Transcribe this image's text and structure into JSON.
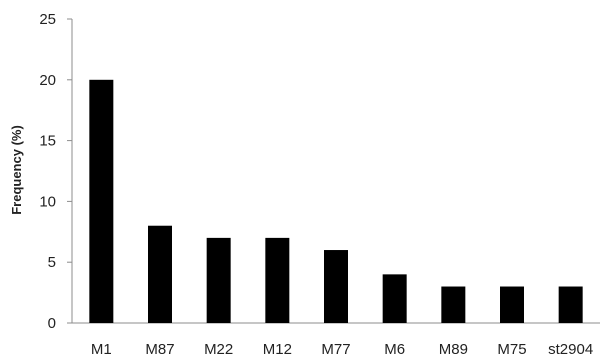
{
  "chart_data": {
    "type": "bar",
    "categories": [
      "M1",
      "M87",
      "M22",
      "M12",
      "M77",
      "M6",
      "M89",
      "M75",
      "st2904"
    ],
    "values": [
      20,
      8,
      7,
      7,
      6,
      4,
      3,
      3,
      3
    ],
    "title": "",
    "xlabel": "",
    "ylabel": "Frequency (%)",
    "ylim": [
      0,
      25
    ],
    "yticks": [
      0,
      5,
      10,
      15,
      20,
      25
    ],
    "grid": false,
    "legend": "none",
    "bar_color": "#000000",
    "axis_color": "#8c8c8c"
  }
}
